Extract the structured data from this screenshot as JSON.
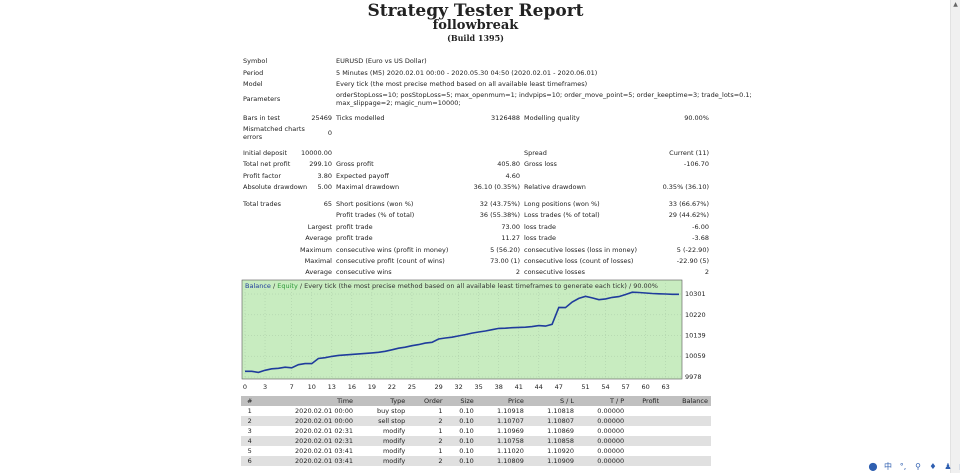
{
  "report": {
    "title": "Strategy Tester Report",
    "expert": "followbreak",
    "build": "(Build 1395)"
  },
  "summary": {
    "symbol_label": "Symbol",
    "symbol_value": "EURUSD (Euro vs US Dollar)",
    "period_label": "Period",
    "period_value": "5 Minutes (M5) 2020.02.01 00:00 - 2020.05.30 04:50 (2020.02.01 - 2020.06.01)",
    "model_label": "Model",
    "model_value": "Every tick (the most precise method based on all available least timeframes)",
    "parameters_label": "Parameters",
    "parameters_line1": "orderStopLoss=10; posStopLoss=5; max_openmum=1; indvpips=10; order_move_point=5; order_keeptime=3; trade_lots=0.1;",
    "parameters_line2": "max_slippage=2; magic_num=10000;",
    "bars_label": "Bars in test",
    "bars_value": "25469",
    "ticks_label": "Ticks modelled",
    "ticks_value": "3126488",
    "quality_label": "Modelling quality",
    "quality_value": "90.00%",
    "mismatch_label1": "Mismatched charts",
    "mismatch_label2": "errors",
    "mismatch_value": "0",
    "deposit_label": "Initial deposit",
    "deposit_value": "10000.00",
    "spread_label": "Spread",
    "spread_value": "Current (11)",
    "netprofit_label": "Total net profit",
    "netprofit_value": "299.10",
    "grossprofit_label": "Gross profit",
    "grossprofit_value": "405.80",
    "grossloss_label": "Gross loss",
    "grossloss_value": "-106.70",
    "pf_label": "Profit factor",
    "pf_value": "3.80",
    "payoff_label": "Expected payoff",
    "payoff_value": "4.60",
    "absdd_label": "Absolute drawdown",
    "absdd_value": "5.00",
    "maxdd_label": "Maximal drawdown",
    "maxdd_value": "36.10 (0.35%)",
    "reldd_label": "Relative drawdown",
    "reldd_value": "0.35% (36.10)",
    "trades_label": "Total trades",
    "trades_value": "65",
    "short_label": "Short positions (won %)",
    "short_value": "32 (43.75%)",
    "long_label": "Long positions (won %)",
    "long_value": "33 (66.67%)",
    "profit_trades_label": "Profit trades (% of total)",
    "profit_trades_value": "36 (55.38%)",
    "loss_trades_label": "Loss trades (% of total)",
    "loss_trades_value": "29 (44.62%)",
    "largest_label": "Largest",
    "largest_profit_label": "profit trade",
    "largest_profit_value": "73.00",
    "largest_loss_label": "loss trade",
    "largest_loss_value": "-6.00",
    "average_label": "Average",
    "avg_profit_label": "profit trade",
    "avg_profit_value": "11.27",
    "avg_loss_label": "loss trade",
    "avg_loss_value": "-3.68",
    "maximum_label": "Maximum",
    "max_cw_label": "consecutive wins (profit in money)",
    "max_cw_value": "5 (56.20)",
    "max_cl_label": "consecutive losses (loss in money)",
    "max_cl_value": "5 (-22.90)",
    "maximal_label": "Maximal",
    "maximal_cp_label": "consecutive profit (count of wins)",
    "maximal_cp_value": "73.00 (1)",
    "maximal_cl_label": "consecutive loss (count of losses)",
    "maximal_cl_value": "-22.90 (5)",
    "average2_label": "Average",
    "avg_cw_label": "consecutive wins",
    "avg_cw_value": "2",
    "avg_cl_label": "consecutive losses",
    "avg_cl_value": "2"
  },
  "chart_data": {
    "type": "line",
    "legend_balance": "Balance",
    "legend_sep": " / ",
    "legend_equity": "Equity",
    "legend_rest": " / Every tick (the most precise method based on all available least timeframes to generate each tick) / 90.00%",
    "x_ticks": [
      "0",
      "3",
      "7",
      "10",
      "13",
      "16",
      "19",
      "22",
      "25",
      "29",
      "32",
      "35",
      "38",
      "41",
      "44",
      "47",
      "51",
      "54",
      "57",
      "60",
      "63"
    ],
    "y_ticks": [
      "10301",
      "10220",
      "10139",
      "10059",
      "9978"
    ],
    "ylim": [
      9978,
      10340
    ],
    "xlim": [
      0,
      65
    ],
    "colors": {
      "balance": "#1f3c9c",
      "equity": "#3cb043",
      "background": "#c8ecc0",
      "grid": "#9fbf9f"
    },
    "series": [
      {
        "name": "Balance",
        "x": [
          0,
          1,
          2,
          3,
          4,
          5,
          6,
          7,
          8,
          9,
          10,
          11,
          12,
          13,
          14,
          15,
          16,
          17,
          18,
          19,
          20,
          21,
          22,
          23,
          24,
          25,
          26,
          27,
          28,
          29,
          30,
          31,
          32,
          33,
          34,
          35,
          36,
          37,
          38,
          39,
          40,
          41,
          42,
          43,
          44,
          45,
          46,
          47,
          48,
          49,
          50,
          51,
          52,
          53,
          54,
          55,
          56,
          57,
          58,
          59,
          60,
          61,
          62,
          63,
          64,
          65
        ],
        "y": [
          10000,
          10000,
          9996,
          10004,
          10010,
          10012,
          10016,
          10014,
          10026,
          10030,
          10030,
          10050,
          10053,
          10058,
          10062,
          10064,
          10066,
          10068,
          10070,
          10072,
          10074,
          10078,
          10084,
          10090,
          10094,
          10100,
          10104,
          10110,
          10113,
          10126,
          10130,
          10133,
          10138,
          10143,
          10149,
          10153,
          10157,
          10162,
          10167,
          10168,
          10170,
          10171,
          10172,
          10174,
          10178,
          10176,
          10183,
          10249,
          10248,
          10270,
          10284,
          10292,
          10286,
          10279,
          10282,
          10288,
          10291,
          10299,
          10308,
          10307,
          10305,
          10303,
          10302,
          10301,
          10300,
          10300
        ]
      }
    ]
  },
  "deals": {
    "headers": [
      "#",
      "Time",
      "Type",
      "Order",
      "Size",
      "Price",
      "S / L",
      "T / P",
      "Profit",
      "Balance"
    ],
    "rows": [
      [
        "1",
        "2020.02.01 00:00",
        "buy stop",
        "1",
        "0.10",
        "1.10918",
        "1.10818",
        "0.00000",
        "",
        ""
      ],
      [
        "2",
        "2020.02.01 00:00",
        "sell stop",
        "2",
        "0.10",
        "1.10707",
        "1.10807",
        "0.00000",
        "",
        ""
      ],
      [
        "3",
        "2020.02.01 02:31",
        "modify",
        "1",
        "0.10",
        "1.10969",
        "1.10869",
        "0.00000",
        "",
        ""
      ],
      [
        "4",
        "2020.02.01 02:31",
        "modify",
        "2",
        "0.10",
        "1.10758",
        "1.10858",
        "0.00000",
        "",
        ""
      ],
      [
        "5",
        "2020.02.01 03:41",
        "modify",
        "1",
        "0.10",
        "1.11020",
        "1.10920",
        "0.00000",
        "",
        ""
      ],
      [
        "6",
        "2020.02.01 03:41",
        "modify",
        "2",
        "0.10",
        "1.10809",
        "1.10909",
        "0.00000",
        "",
        ""
      ]
    ]
  },
  "tray_icons": [
    "tray-ime-icon",
    "tray-chinese-icon",
    "tray-punctuation-icon",
    "tray-voice-icon",
    "tray-mic-icon",
    "tray-user-icon",
    "tray-grid-icon",
    "tray-settings-icon"
  ]
}
